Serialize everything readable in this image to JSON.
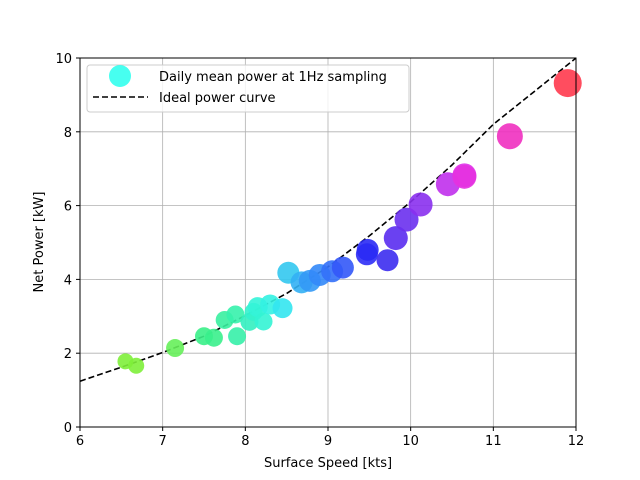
{
  "chart_data": {
    "type": "scatter",
    "xlabel": "Surface Speed [kts]",
    "ylabel": "Net Power [kW]",
    "xlim": [
      6,
      12
    ],
    "ylim": [
      0,
      10
    ],
    "xticks": [
      "6",
      "7",
      "8",
      "9",
      "10",
      "11",
      "12"
    ],
    "yticks": [
      "0",
      "2",
      "4",
      "6",
      "8",
      "10"
    ],
    "grid": true,
    "legend_position": "top-left",
    "series": [
      {
        "name": "Daily mean power at 1Hz sampling",
        "kind": "scatter",
        "legend_color": "#33ffee",
        "points": [
          {
            "x": 6.55,
            "y": 1.78,
            "size": 8,
            "color": "#7ef03a"
          },
          {
            "x": 6.68,
            "y": 1.66,
            "size": 8,
            "color": "#7ef03a"
          },
          {
            "x": 7.15,
            "y": 2.14,
            "size": 9,
            "color": "#66f05a"
          },
          {
            "x": 7.5,
            "y": 2.46,
            "size": 9,
            "color": "#3af088"
          },
          {
            "x": 7.62,
            "y": 2.42,
            "size": 9,
            "color": "#3af08c"
          },
          {
            "x": 7.75,
            "y": 2.9,
            "size": 9,
            "color": "#38f0a0"
          },
          {
            "x": 7.88,
            "y": 3.05,
            "size": 9,
            "color": "#36f2ac"
          },
          {
            "x": 7.9,
            "y": 2.46,
            "size": 9,
            "color": "#36f0a8"
          },
          {
            "x": 8.05,
            "y": 2.85,
            "size": 9,
            "color": "#33f0c0"
          },
          {
            "x": 8.1,
            "y": 3.12,
            "size": 9,
            "color": "#33f2cc"
          },
          {
            "x": 8.15,
            "y": 3.25,
            "size": 10,
            "color": "#33f4d8"
          },
          {
            "x": 8.22,
            "y": 2.86,
            "size": 9,
            "color": "#33f4d4"
          },
          {
            "x": 8.3,
            "y": 3.32,
            "size": 10,
            "color": "#33f2e2"
          },
          {
            "x": 8.45,
            "y": 3.22,
            "size": 10,
            "color": "#33e6f0"
          },
          {
            "x": 8.52,
            "y": 4.18,
            "size": 11,
            "color": "#33c8f0"
          },
          {
            "x": 8.68,
            "y": 3.92,
            "size": 11,
            "color": "#33b0f4"
          },
          {
            "x": 8.78,
            "y": 3.96,
            "size": 11,
            "color": "#3399f6"
          },
          {
            "x": 8.9,
            "y": 4.12,
            "size": 11,
            "color": "#3388f8"
          },
          {
            "x": 9.05,
            "y": 4.22,
            "size": 11,
            "color": "#3370f8"
          },
          {
            "x": 9.18,
            "y": 4.32,
            "size": 11,
            "color": "#3358f8"
          },
          {
            "x": 9.47,
            "y": 4.68,
            "size": 11,
            "color": "#2e2ef6"
          },
          {
            "x": 9.48,
            "y": 4.8,
            "size": 11,
            "color": "#2a2af4"
          },
          {
            "x": 9.72,
            "y": 4.52,
            "size": 11,
            "color": "#3c2cf0"
          },
          {
            "x": 9.82,
            "y": 5.12,
            "size": 12,
            "color": "#5a2cf0"
          },
          {
            "x": 9.95,
            "y": 5.62,
            "size": 12,
            "color": "#6a30ee"
          },
          {
            "x": 10.12,
            "y": 6.03,
            "size": 12,
            "color": "#8a30ee"
          },
          {
            "x": 10.45,
            "y": 6.58,
            "size": 12,
            "color": "#c030ec"
          },
          {
            "x": 10.65,
            "y": 6.82,
            "size": 12,
            "color": "#e030ea"
          },
          {
            "x": 10.65,
            "y": 6.78,
            "size": 12,
            "color": "#e432e0"
          },
          {
            "x": 11.2,
            "y": 7.88,
            "size": 13,
            "color": "#f030c0"
          },
          {
            "x": 11.9,
            "y": 9.32,
            "size": 14,
            "color": "#ff3a4e"
          }
        ]
      },
      {
        "name": "Ideal power curve",
        "kind": "line",
        "style": "dashed",
        "color": "#000000",
        "points": [
          {
            "x": 6.0,
            "y": 1.24
          },
          {
            "x": 6.5,
            "y": 1.62
          },
          {
            "x": 7.0,
            "y": 2.02
          },
          {
            "x": 7.5,
            "y": 2.46
          },
          {
            "x": 8.0,
            "y": 3.02
          },
          {
            "x": 8.5,
            "y": 3.62
          },
          {
            "x": 9.0,
            "y": 4.34
          },
          {
            "x": 9.5,
            "y": 5.18
          },
          {
            "x": 10.0,
            "y": 6.1
          },
          {
            "x": 10.5,
            "y": 7.1
          },
          {
            "x": 11.0,
            "y": 8.2
          },
          {
            "x": 11.5,
            "y": 9.1
          },
          {
            "x": 12.0,
            "y": 10.0
          }
        ]
      }
    ]
  }
}
